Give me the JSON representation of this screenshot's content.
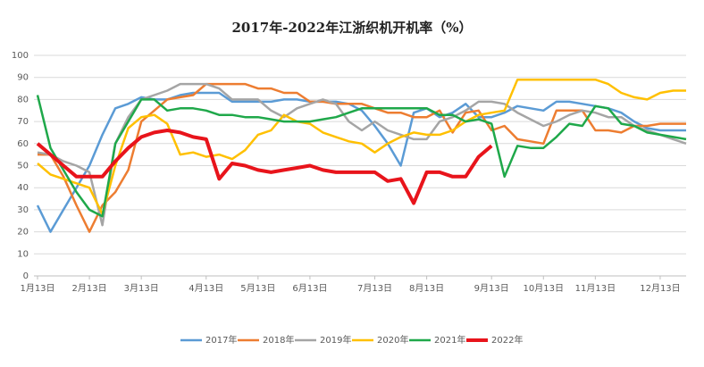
{
  "chart_data": {
    "type": "line",
    "title": "2017年-2022年江浙织机开机率（%）",
    "categories": [
      "1月13日",
      null,
      null,
      null,
      "2月13日",
      null,
      null,
      null,
      "3月13日",
      null,
      null,
      null,
      null,
      "4月13日",
      null,
      null,
      null,
      "5月13日",
      null,
      null,
      null,
      "6月13日",
      null,
      null,
      null,
      null,
      "7月13日",
      null,
      null,
      null,
      "8月13日",
      null,
      null,
      null,
      null,
      "9月13日",
      null,
      null,
      null,
      "10月13日",
      null,
      null,
      null,
      "11月13日",
      null,
      null,
      null,
      null,
      "12月13日",
      null,
      null
    ],
    "series": [
      {
        "name": "2017年",
        "color": "#5b9bd5",
        "values": [
          32,
          20,
          30,
          40,
          50,
          64,
          76,
          78,
          81,
          80,
          80,
          82,
          83,
          83,
          83,
          79,
          79,
          79,
          79,
          80,
          80,
          79,
          79,
          79,
          78,
          75,
          68,
          60,
          50,
          74,
          76,
          72,
          74,
          78,
          72,
          72,
          74,
          77,
          76,
          75,
          79,
          79,
          78,
          77,
          76,
          74,
          70,
          67,
          66,
          66,
          66
        ]
      },
      {
        "name": "2018年",
        "color": "#ed7d31",
        "values": [
          55,
          55,
          45,
          32,
          20,
          32,
          38,
          48,
          70,
          75,
          80,
          81,
          82,
          87,
          87,
          87,
          87,
          85,
          85,
          83,
          83,
          79,
          79,
          78,
          78,
          78,
          76,
          74,
          74,
          72,
          72,
          75,
          65,
          74,
          75,
          66,
          68,
          62,
          61,
          60,
          75,
          75,
          75,
          66,
          66,
          65,
          68,
          68,
          69,
          69,
          69
        ]
      },
      {
        "name": "2019年",
        "color": "#a5a5a5",
        "values": [
          56,
          55,
          52,
          50,
          47,
          23,
          60,
          72,
          80,
          82,
          84,
          87,
          87,
          87,
          85,
          80,
          80,
          80,
          75,
          72,
          76,
          78,
          80,
          78,
          70,
          66,
          70,
          66,
          64,
          62,
          62,
          70,
          72,
          75,
          79,
          79,
          78,
          74,
          71,
          68,
          70,
          73,
          75,
          74,
          72,
          72,
          68,
          66,
          64,
          62,
          60
        ]
      },
      {
        "name": "2020年",
        "color": "#ffc000",
        "values": [
          51,
          46,
          44,
          42,
          40,
          28,
          50,
          67,
          72,
          73,
          69,
          55,
          56,
          54,
          55,
          53,
          57,
          64,
          66,
          73,
          70,
          69,
          65,
          63,
          61,
          60,
          56,
          60,
          63,
          65,
          64,
          64,
          66,
          70,
          73,
          74,
          75,
          89,
          89,
          89,
          89,
          89,
          89,
          89,
          87,
          83,
          81,
          80,
          83,
          84,
          84
        ]
      },
      {
        "name": "2021年",
        "color": "#1fa84a",
        "values": [
          82,
          58,
          48,
          38,
          30,
          27,
          60,
          70,
          80,
          80,
          75,
          76,
          76,
          75,
          73,
          73,
          72,
          72,
          71,
          70,
          70,
          70,
          71,
          72,
          74,
          76,
          76,
          76,
          76,
          76,
          76,
          73,
          73,
          70,
          71,
          69,
          45,
          59,
          58,
          58,
          63,
          69,
          68,
          77,
          76,
          69,
          68,
          65,
          64,
          63,
          62
        ]
      },
      {
        "name": "2022年",
        "color": "#e8141b",
        "values": [
          60,
          55,
          50,
          45,
          45,
          45,
          52,
          58,
          63,
          65,
          66,
          65,
          63,
          62,
          44,
          51,
          50,
          48,
          47,
          48,
          49,
          50,
          48,
          47,
          47,
          47,
          47,
          43,
          44,
          33,
          47,
          47,
          45,
          45,
          54,
          59,
          null,
          null,
          null,
          null,
          null,
          null,
          null,
          null,
          null,
          null,
          null,
          null,
          null,
          null,
          null
        ]
      }
    ],
    "ylim": [
      0,
      100
    ],
    "yticks": [
      0,
      10,
      20,
      30,
      40,
      50,
      60,
      70,
      80,
      90,
      100
    ],
    "grid": true,
    "legend": "bottom"
  }
}
